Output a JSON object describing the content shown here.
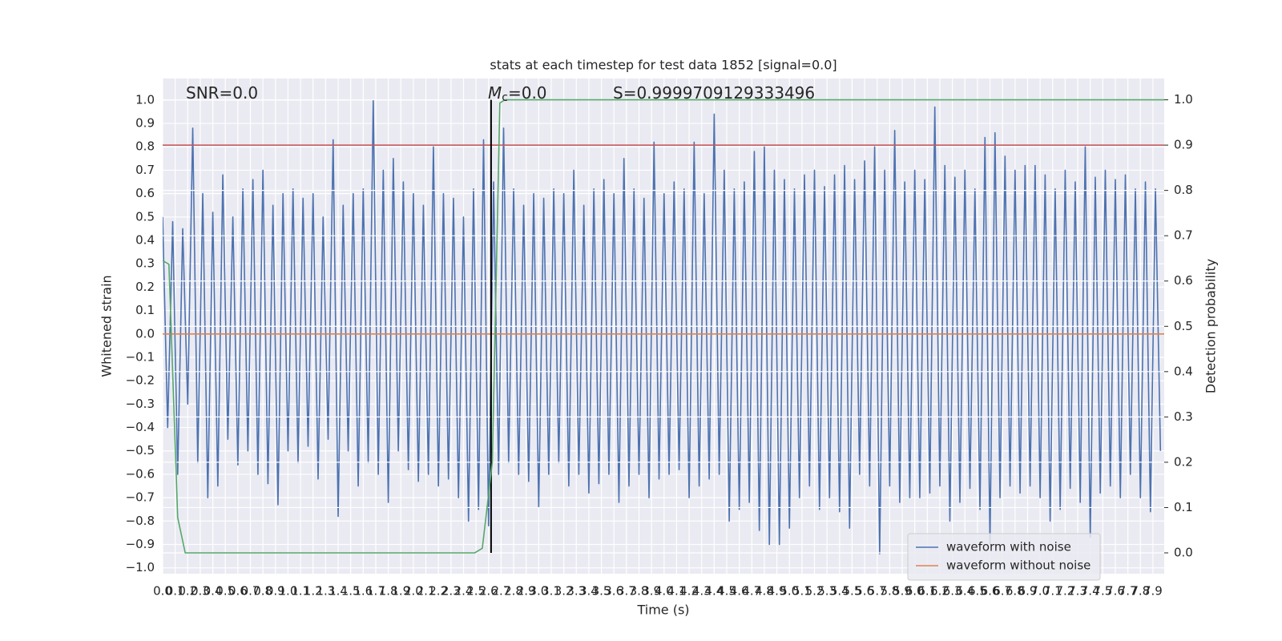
{
  "chart_data": {
    "type": "line",
    "title": "stats at each timestep for test data 1852 [signal=0.0]",
    "x_label": "Time (s)",
    "y_label": "Whitened strain",
    "y2_label": "Detection probability",
    "grid": true,
    "legend": "lower right",
    "background": "#eaeaf2",
    "xlim": [
      0,
      7.99
    ],
    "ylim": [
      -1.025,
      1.092
    ],
    "y2lim": [
      -0.046,
      1.047
    ],
    "xticks": [
      {
        "value": 0,
        "label": "0.0"
      },
      0.1,
      0.2,
      0.3,
      0.4,
      0.5,
      0.6,
      0.7,
      0.8,
      0.9,
      {
        "value": 1,
        "label": "1.0"
      },
      1.1,
      1.2,
      1.3,
      1.4,
      1.5,
      1.6,
      1.7,
      1.8,
      1.9,
      {
        "value": 2,
        "label": "2.0"
      },
      2.1,
      2.2,
      2.3,
      2.4,
      2.5,
      2.6,
      2.7,
      2.8,
      2.9,
      {
        "value": 3,
        "label": "3.0"
      },
      3.1,
      3.2,
      3.3,
      3.4,
      3.5,
      3.6,
      3.7,
      3.8,
      3.9,
      {
        "value": 4,
        "label": "4.0"
      },
      4.1,
      4.2,
      4.3,
      4.4,
      4.5,
      4.6,
      4.7,
      4.8,
      4.9,
      {
        "value": 5,
        "label": "5.0"
      },
      5.1,
      5.2,
      5.3,
      5.4,
      5.5,
      5.6,
      5.7,
      5.8,
      5.9,
      {
        "value": 6,
        "label": "6.0"
      },
      6.1,
      6.2,
      6.3,
      6.4,
      6.5,
      6.6,
      6.7,
      6.8,
      6.9,
      {
        "value": 7,
        "label": "7.0"
      },
      7.1,
      7.2,
      7.3,
      7.4,
      7.5,
      7.6,
      7.7,
      7.8,
      7.9
    ],
    "yticks": [
      {
        "value": -1,
        "label": "−1.0"
      },
      {
        "value": -0.9,
        "label": "−0.9"
      },
      {
        "value": -0.8,
        "label": "−0.8"
      },
      {
        "value": -0.7,
        "label": "−0.7"
      },
      {
        "value": -0.6,
        "label": "−0.6"
      },
      {
        "value": -0.5,
        "label": "−0.5"
      },
      {
        "value": -0.4,
        "label": "−0.4"
      },
      {
        "value": -0.3,
        "label": "−0.3"
      },
      {
        "value": -0.2,
        "label": "−0.2"
      },
      {
        "value": -0.1,
        "label": "−0.1"
      },
      {
        "value": 0,
        "label": "0.0"
      },
      0.1,
      0.2,
      0.3,
      0.4,
      0.5,
      0.6,
      0.7,
      0.8,
      0.9,
      {
        "value": 1,
        "label": "1.0"
      }
    ],
    "y2ticks": [
      {
        "value": 0,
        "label": "0.0"
      },
      0.1,
      0.2,
      0.3,
      0.4,
      0.5,
      0.6,
      0.7,
      0.8,
      0.9,
      {
        "value": 1,
        "label": "1.0"
      }
    ],
    "annotations": [
      {
        "parts": [
          {
            "text": "SNR=0.0"
          }
        ]
      },
      {
        "parts": [
          {
            "text": "M",
            "style": "italic"
          },
          {
            "text": "c",
            "style": "subscript"
          },
          {
            "text": "=0.0"
          }
        ]
      },
      {
        "parts": [
          {
            "text": "S=0.9999709129333496"
          }
        ]
      }
    ],
    "series": [
      {
        "name": "waveform with noise",
        "color": "#4c72b0",
        "x": [
          0,
          0.04,
          0.08,
          0.12,
          0.16,
          0.2,
          0.24,
          0.28,
          0.32,
          0.36,
          0.4,
          0.44,
          0.48,
          0.52,
          0.56,
          0.6,
          0.64,
          0.68,
          0.72,
          0.76,
          0.8,
          0.84,
          0.88,
          0.92,
          0.96,
          1,
          1.04,
          1.08,
          1.12,
          1.16,
          1.2,
          1.24,
          1.28,
          1.32,
          1.36,
          1.4,
          1.44,
          1.48,
          1.52,
          1.56,
          1.6,
          1.64,
          1.68,
          1.72,
          1.76,
          1.8,
          1.84,
          1.88,
          1.92,
          1.96,
          2,
          2.04,
          2.08,
          2.12,
          2.16,
          2.2,
          2.24,
          2.28,
          2.32,
          2.36,
          2.4,
          2.44,
          2.48,
          2.52,
          2.56,
          2.6,
          2.64,
          2.68,
          2.72,
          2.76,
          2.8,
          2.84,
          2.88,
          2.92,
          2.96,
          3,
          3.04,
          3.08,
          3.12,
          3.16,
          3.2,
          3.24,
          3.28,
          3.32,
          3.36,
          3.4,
          3.44,
          3.48,
          3.52,
          3.56,
          3.6,
          3.64,
          3.68,
          3.72,
          3.76,
          3.8,
          3.84,
          3.88,
          3.92,
          3.96,
          4,
          4.04,
          4.08,
          4.12,
          4.16,
          4.2,
          4.24,
          4.28,
          4.32,
          4.36,
          4.4,
          4.44,
          4.48,
          4.52,
          4.56,
          4.6,
          4.64,
          4.68,
          4.72,
          4.76,
          4.8,
          4.84,
          4.88,
          4.92,
          4.96,
          5,
          5.04,
          5.08,
          5.12,
          5.16,
          5.2,
          5.24,
          5.28,
          5.32,
          5.36,
          5.4,
          5.44,
          5.48,
          5.52,
          5.56,
          5.6,
          5.64,
          5.68,
          5.72,
          5.76,
          5.8,
          5.84,
          5.88,
          5.92,
          5.96,
          6,
          6.04,
          6.08,
          6.12,
          6.16,
          6.2,
          6.24,
          6.28,
          6.32,
          6.36,
          6.4,
          6.44,
          6.48,
          6.52,
          6.56,
          6.6,
          6.64,
          6.68,
          6.72,
          6.76,
          6.8,
          6.84,
          6.88,
          6.92,
          6.96,
          7,
          7.04,
          7.08,
          7.12,
          7.16,
          7.2,
          7.24,
          7.28,
          7.32,
          7.36,
          7.4,
          7.44,
          7.48,
          7.52,
          7.56,
          7.6,
          7.64,
          7.68,
          7.72,
          7.76,
          7.8,
          7.84,
          7.88,
          7.92,
          7.96
        ],
        "values": [
          0.5,
          -0.4,
          0.48,
          -0.6,
          0.45,
          -0.3,
          0.88,
          -0.55,
          0.6,
          -0.7,
          0.52,
          -0.65,
          0.68,
          -0.45,
          0.5,
          -0.56,
          0.62,
          -0.5,
          0.66,
          -0.6,
          0.7,
          -0.64,
          0.55,
          -0.73,
          0.6,
          -0.5,
          0.62,
          -0.55,
          0.58,
          -0.48,
          0.6,
          -0.62,
          0.5,
          -0.45,
          0.83,
          -0.78,
          0.55,
          -0.5,
          0.6,
          -0.65,
          0.62,
          -0.55,
          1.0,
          -0.6,
          0.7,
          -0.72,
          0.75,
          -0.5,
          0.65,
          -0.58,
          0.6,
          -0.63,
          0.55,
          -0.6,
          0.8,
          -0.65,
          0.6,
          -0.62,
          0.58,
          -0.7,
          0.5,
          -0.8,
          0.62,
          -0.75,
          0.83,
          -0.82,
          0.65,
          -0.6,
          0.88,
          -0.55,
          0.62,
          -0.6,
          0.55,
          -0.63,
          0.6,
          -0.74,
          0.58,
          -0.6,
          0.62,
          -0.55,
          0.6,
          -0.65,
          0.7,
          -0.6,
          0.55,
          -0.68,
          0.62,
          -0.64,
          0.66,
          -0.6,
          0.6,
          -0.72,
          0.75,
          -0.65,
          0.62,
          -0.6,
          0.58,
          -0.7,
          0.82,
          -0.62,
          0.6,
          -0.6,
          0.65,
          -0.58,
          0.62,
          -0.7,
          0.82,
          -0.65,
          0.6,
          -0.62,
          0.94,
          -0.6,
          0.7,
          -0.8,
          0.62,
          -0.75,
          0.65,
          -0.72,
          0.78,
          -0.84,
          0.8,
          -0.9,
          0.7,
          -0.9,
          0.66,
          -0.83,
          0.62,
          -0.7,
          0.68,
          -0.65,
          0.7,
          -0.75,
          0.63,
          -0.7,
          0.68,
          -0.76,
          0.72,
          -0.83,
          0.66,
          -0.6,
          0.74,
          -0.65,
          0.8,
          -0.94,
          0.7,
          -0.65,
          0.87,
          -0.72,
          0.65,
          -0.7,
          0.7,
          -0.7,
          0.66,
          -0.68,
          0.97,
          -0.65,
          0.72,
          -0.8,
          0.67,
          -0.72,
          0.7,
          -0.66,
          0.62,
          -0.75,
          0.84,
          -0.9,
          0.86,
          -0.7,
          0.76,
          -0.65,
          0.7,
          -0.68,
          0.72,
          -0.65,
          0.72,
          -0.7,
          0.68,
          -0.8,
          0.62,
          -0.75,
          0.7,
          -0.66,
          0.65,
          -0.72,
          0.8,
          -0.87,
          0.67,
          -0.68,
          0.7,
          -0.65,
          0.66,
          -0.7,
          0.68,
          -0.6,
          0.62,
          -0.7,
          0.65,
          -0.76,
          0.62,
          -0.5
        ]
      },
      {
        "name": "waveform without noise",
        "color": "#dd8452",
        "x": [
          0,
          7.99
        ],
        "values": [
          0,
          0
        ]
      },
      {
        "color": "#55a868",
        "axis": "y2",
        "x": [
          0,
          0.05,
          0.12,
          0.18,
          2.49,
          2.55,
          2.63,
          2.69,
          2.73,
          7.99
        ],
        "values": [
          0.645,
          0.637,
          0.078,
          0,
          0,
          0.01,
          0.2,
          0.993,
          1.0,
          1.0
        ]
      }
    ],
    "hlines": [
      {
        "value": 0.9,
        "axis": "y2",
        "color": "#c44e52"
      }
    ],
    "vlines": [
      {
        "x": 2.62,
        "y2min": 0,
        "y2max": 1,
        "color": "#000000"
      }
    ]
  }
}
